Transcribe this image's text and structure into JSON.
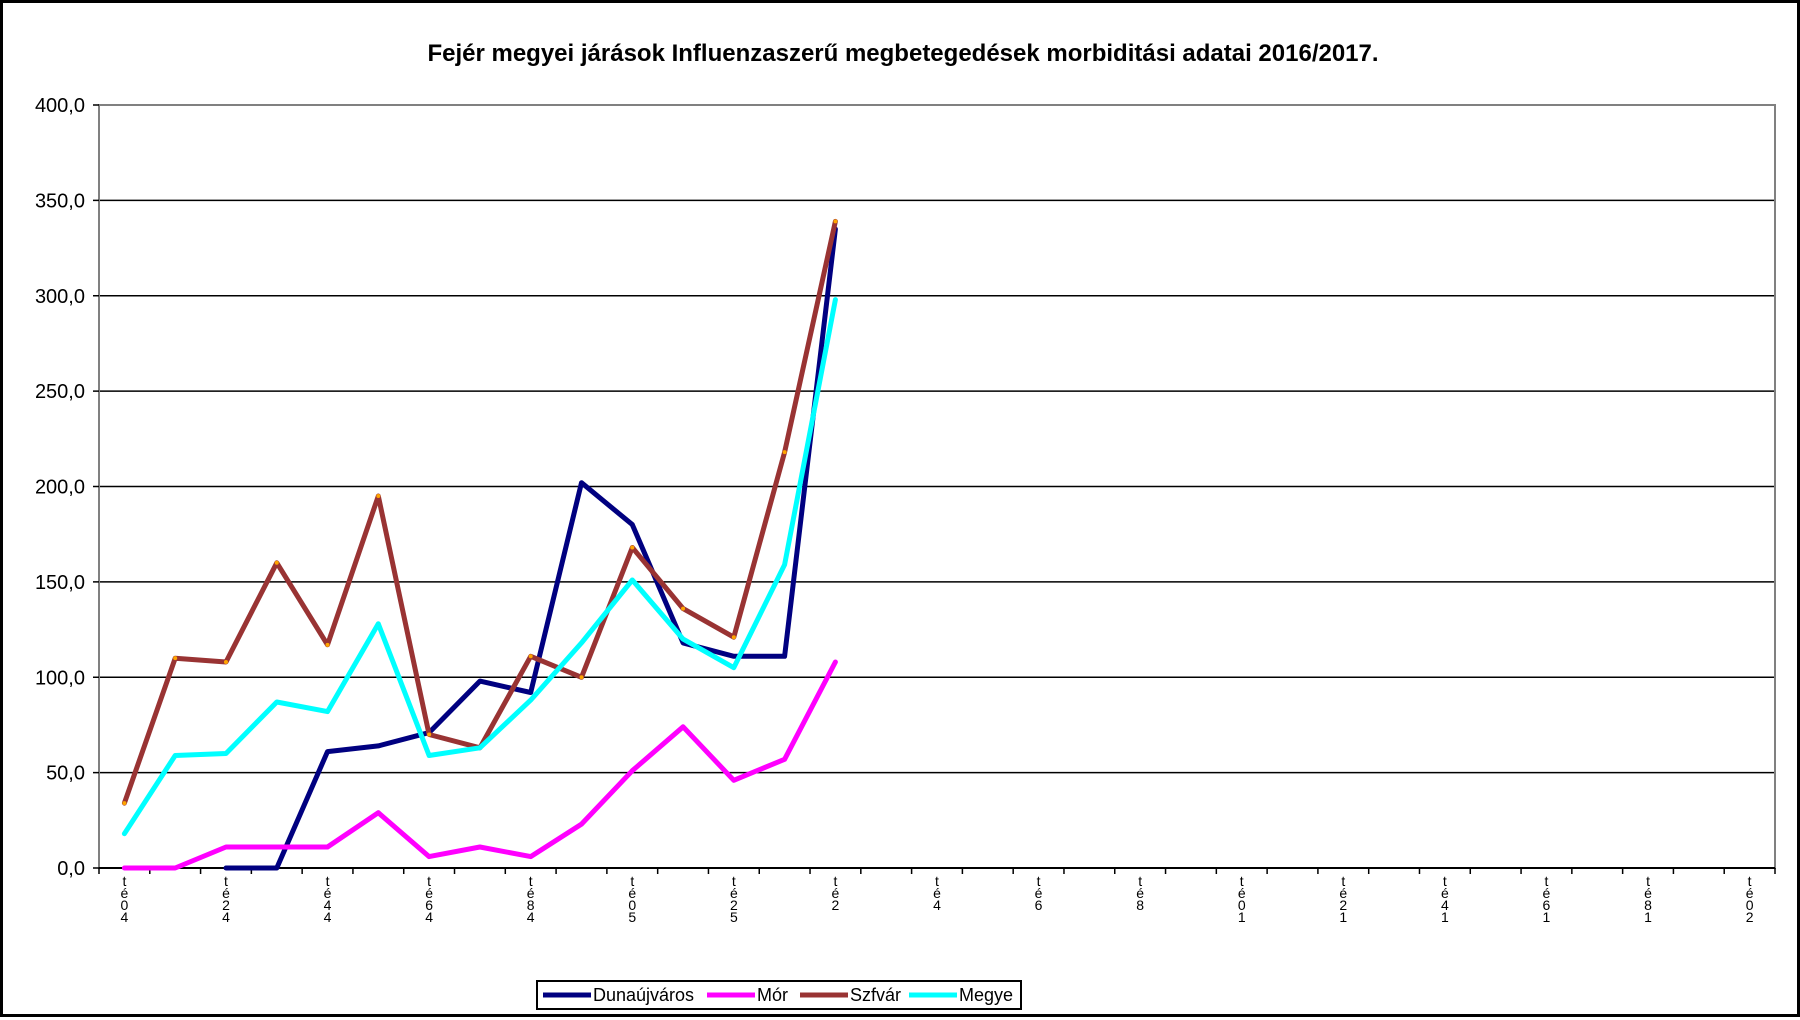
{
  "chart_data": {
    "type": "line",
    "title": "Fejér megyei járások Influenzaszerű megbetegedések morbiditási adatai 2016/2017.",
    "xlabel": "",
    "ylabel": "",
    "ylim": [
      0,
      400
    ],
    "yticks": [
      "0,0",
      "50,0",
      "100,0",
      "150,0",
      "200,0",
      "250,0",
      "300,0",
      "350,0",
      "400,0"
    ],
    "grid": true,
    "legend_position": "bottom",
    "x_ticks": [
      [
        "t",
        "é",
        "0",
        "4"
      ],
      [
        "t",
        "é",
        "2",
        "4"
      ],
      [
        "t",
        "é",
        "4",
        "4"
      ],
      [
        "t",
        "é",
        "6",
        "4"
      ],
      [
        "t",
        "é",
        "8",
        "4"
      ],
      [
        "t",
        "é",
        "0",
        "5"
      ],
      [
        "t",
        "é",
        "2",
        "5"
      ],
      [
        "t",
        "é",
        "2",
        ""
      ],
      [
        "t",
        "é",
        "4",
        ""
      ],
      [
        "t",
        "é",
        "6",
        ""
      ],
      [
        "t",
        "é",
        "8",
        ""
      ],
      [
        "t",
        "é",
        "0",
        "1"
      ],
      [
        "t",
        "é",
        "2",
        "1"
      ],
      [
        "t",
        "é",
        "4",
        "1"
      ],
      [
        "t",
        "é",
        "6",
        "1"
      ],
      [
        "t",
        "é",
        "8",
        "1"
      ],
      [
        "t",
        "é",
        "0",
        "2"
      ]
    ],
    "x_count": 33,
    "series": [
      {
        "name": "Dunaújváros",
        "color": "#000080",
        "values": [
          null,
          null,
          0,
          0,
          61,
          64,
          71,
          98,
          92,
          202,
          180,
          118,
          111,
          111,
          335
        ]
      },
      {
        "name": "Mór",
        "color": "#ff00ff",
        "values": [
          0,
          0,
          11,
          11,
          11,
          29,
          6,
          11,
          6,
          23,
          51,
          74,
          46,
          57,
          108
        ]
      },
      {
        "name": "Szfvár",
        "color": "#993333",
        "values": [
          34,
          110,
          108,
          160,
          117,
          195,
          70,
          63,
          111,
          100,
          168,
          136,
          121,
          218,
          339
        ]
      },
      {
        "name": "Megye",
        "color": "#00ffff",
        "values": [
          18,
          59,
          60,
          87,
          82,
          128,
          59,
          63,
          88,
          118,
          151,
          120,
          105,
          159,
          298
        ]
      }
    ]
  }
}
